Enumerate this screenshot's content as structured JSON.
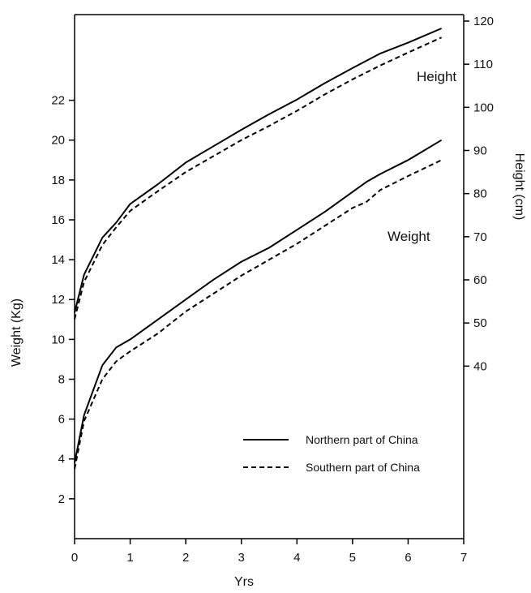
{
  "chart_data": {
    "type": "line",
    "xlabel": "Yrs",
    "ylabel_left": "Weight (Kg)",
    "ylabel_right": "Height (cm)",
    "xlim": [
      0,
      7
    ],
    "ylim_left": [
      0,
      26.3
    ],
    "ylim_right": [
      0,
      121.5
    ],
    "x_ticks": [
      0,
      1,
      2,
      3,
      4,
      5,
      6,
      7
    ],
    "y_left_ticks": [
      2,
      4,
      6,
      8,
      10,
      12,
      14,
      16,
      18,
      20,
      22
    ],
    "y_right_ticks": [
      40,
      50,
      60,
      70,
      80,
      90,
      100,
      110,
      120
    ],
    "grid": false,
    "annotations": [
      {
        "id": "height",
        "text": "Height"
      },
      {
        "id": "weight",
        "text": "Weight"
      }
    ],
    "legend": {
      "placement": "bottom-right",
      "entries": [
        {
          "label": "Northern part of China",
          "style": "solid"
        },
        {
          "label": "Southern part of China",
          "style": "dashed"
        }
      ]
    },
    "series": [
      {
        "name": "Northern part of China",
        "quantity": "Height",
        "axis": "right",
        "style": "solid",
        "x": [
          0,
          0.17,
          0.5,
          0.75,
          1.0,
          1.5,
          2.0,
          2.5,
          3.0,
          3.5,
          4.0,
          4.5,
          5.0,
          5.5,
          6.0,
          6.6
        ],
        "y": [
          52.4,
          61.2,
          69.8,
          73.3,
          77.6,
          82.2,
          87.2,
          91.0,
          94.8,
          98.4,
          101.8,
          105.6,
          109.1,
          112.5,
          115.0,
          118.3
        ]
      },
      {
        "name": "Southern part of China",
        "quantity": "Height",
        "axis": "right",
        "style": "dashed",
        "x": [
          0,
          0.17,
          0.5,
          0.75,
          1.0,
          1.5,
          2.0,
          2.5,
          3.0,
          3.5,
          4.0,
          4.5,
          5.0,
          5.5,
          6.0,
          6.6
        ],
        "y": [
          50.9,
          59.5,
          68.1,
          72.2,
          76.0,
          80.6,
          85.0,
          88.7,
          92.4,
          95.7,
          99.2,
          103.0,
          106.5,
          109.7,
          112.7,
          116.2
        ]
      },
      {
        "name": "Northern part of China",
        "quantity": "Weight",
        "axis": "left",
        "style": "solid",
        "x": [
          0,
          0.17,
          0.5,
          0.75,
          1.0,
          1.5,
          2.0,
          2.5,
          3.0,
          3.5,
          4.0,
          4.5,
          5.0,
          5.25,
          5.5,
          6.0,
          6.6
        ],
        "y": [
          3.8,
          6.2,
          8.7,
          9.6,
          10.0,
          11.0,
          12.0,
          13.0,
          13.9,
          14.6,
          15.5,
          16.4,
          17.4,
          17.9,
          18.3,
          19.0,
          20.0
        ]
      },
      {
        "name": "Southern part of China",
        "quantity": "Weight",
        "axis": "left",
        "style": "dashed",
        "x": [
          0,
          0.17,
          0.5,
          0.75,
          1.0,
          1.5,
          2.0,
          2.5,
          3.0,
          3.5,
          4.0,
          4.5,
          5.0,
          5.25,
          5.5,
          6.0,
          6.6
        ],
        "y": [
          3.5,
          5.9,
          8.0,
          8.9,
          9.4,
          10.3,
          11.4,
          12.3,
          13.2,
          14.0,
          14.8,
          15.7,
          16.6,
          16.9,
          17.5,
          18.2,
          19.0
        ]
      }
    ]
  }
}
